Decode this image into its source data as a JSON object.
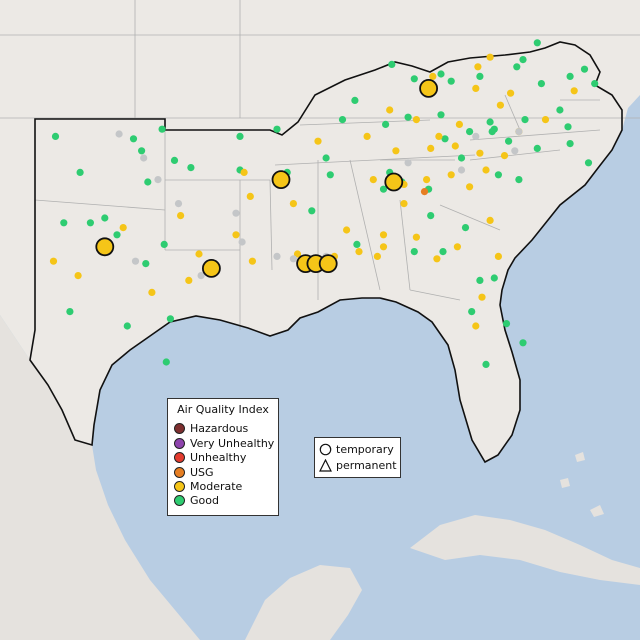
{
  "colors": {
    "land": "#ece9e5",
    "land_outside": "#e5e2de",
    "water": "#b8cde3",
    "region_border": "#111111",
    "state_border": "#b0b0b0",
    "hazardous": "#7e2f2f",
    "very_unhealthy": "#8e44ad",
    "unhealthy": "#e33b2e",
    "usg": "#e67e22",
    "moderate": "#f5c518",
    "good": "#2ecc71",
    "no_data": "#c4c6c8"
  },
  "legend": {
    "title": "Air Quality Index",
    "items": [
      {
        "key": "hazardous",
        "label": "Hazardous"
      },
      {
        "key": "very_unhealthy",
        "label": "Very Unhealthy"
      },
      {
        "key": "unhealthy",
        "label": "Unhealthy"
      },
      {
        "key": "usg",
        "label": "USG"
      },
      {
        "key": "moderate",
        "label": "Moderate"
      },
      {
        "key": "good",
        "label": "Good"
      }
    ]
  },
  "monitor_types": {
    "temporary": "temporary",
    "permanent": "permanent"
  },
  "sites": {
    "temporary_monitors": [
      {
        "category": "moderate",
        "lon": -84.7,
        "lat": 37.4
      },
      {
        "category": "moderate",
        "lon": -91.9,
        "lat": 33.6
      },
      {
        "category": "moderate",
        "lon": -86.4,
        "lat": 33.5
      },
      {
        "category": "moderate",
        "lon": -100.5,
        "lat": 30.8
      },
      {
        "category": "moderate",
        "lon": -95.3,
        "lat": 29.9
      },
      {
        "category": "moderate",
        "lon": -90.7,
        "lat": 30.1
      },
      {
        "category": "moderate",
        "lon": -90.2,
        "lat": 30.1
      },
      {
        "category": "moderate",
        "lon": -89.6,
        "lat": 30.1
      }
    ]
  }
}
